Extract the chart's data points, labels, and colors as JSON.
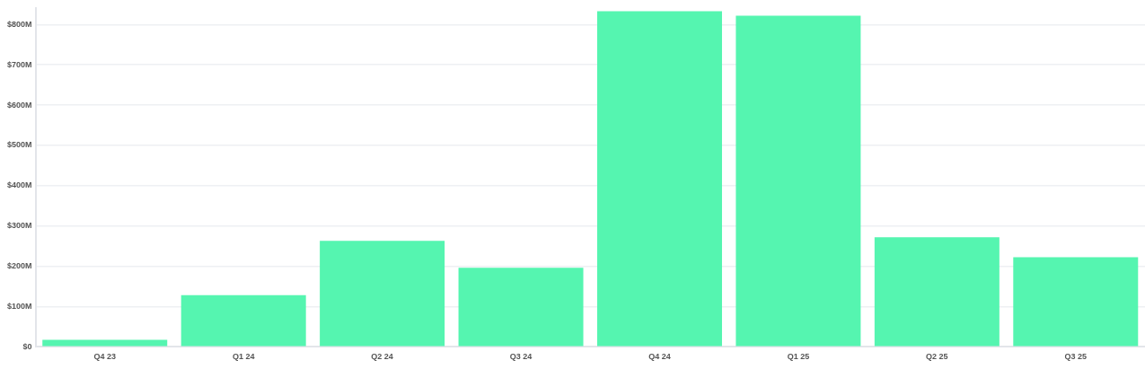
{
  "chart_data": {
    "type": "bar",
    "categories": [
      "Q4 23",
      "Q1 24",
      "Q2 24",
      "Q3 24",
      "Q4 24",
      "Q1 25",
      "Q2 25",
      "Q3 25"
    ],
    "values": [
      17,
      128,
      263,
      196,
      833,
      822,
      272,
      222
    ],
    "color": "#55f5b0",
    "ylim": [
      0,
      840
    ],
    "yticks": [
      {
        "value": 0,
        "label": "$0"
      },
      {
        "value": 100,
        "label": "$100M"
      },
      {
        "value": 200,
        "label": "$200M"
      },
      {
        "value": 300,
        "label": "$300M"
      },
      {
        "value": 400,
        "label": "$400M"
      },
      {
        "value": 500,
        "label": "$500M"
      },
      {
        "value": 600,
        "label": "$600M"
      },
      {
        "value": 700,
        "label": "$700M"
      },
      {
        "value": 800,
        "label": "$800M"
      }
    ],
    "grid": "y",
    "legend": false
  }
}
